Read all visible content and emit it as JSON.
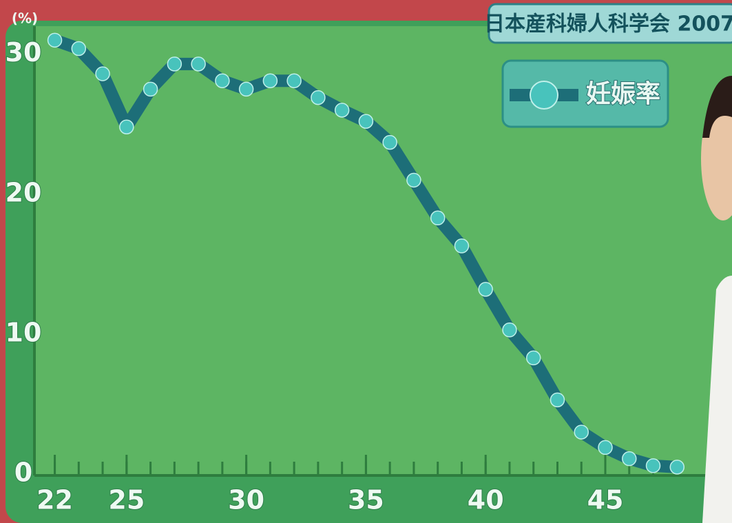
{
  "chart_data": {
    "type": "line",
    "title": "日本産科婦人科学会 2007",
    "y_label": "(%)",
    "x": [
      22,
      23,
      24,
      25,
      26,
      27,
      28,
      29,
      30,
      31,
      32,
      33,
      34,
      35,
      36,
      37,
      38,
      39,
      40,
      41,
      42,
      43,
      44,
      45,
      46,
      47,
      48
    ],
    "series": [
      {
        "name": "妊娠率",
        "color": "#1d6e78",
        "values": [
          31.0,
          30.4,
          28.6,
          24.8,
          27.5,
          29.3,
          29.3,
          28.1,
          27.5,
          28.1,
          28.1,
          26.9,
          26.0,
          25.2,
          23.7,
          21.0,
          18.3,
          16.3,
          13.2,
          10.3,
          8.3,
          5.3,
          3.0,
          1.9,
          1.1,
          0.6,
          0.5
        ]
      }
    ],
    "xlim": [
      21.15,
      49.2
    ],
    "xticks": [
      22,
      25,
      30,
      35,
      40,
      45
    ],
    "ylim": [
      0,
      32
    ],
    "yticks": [
      0,
      10,
      20,
      30
    ]
  }
}
